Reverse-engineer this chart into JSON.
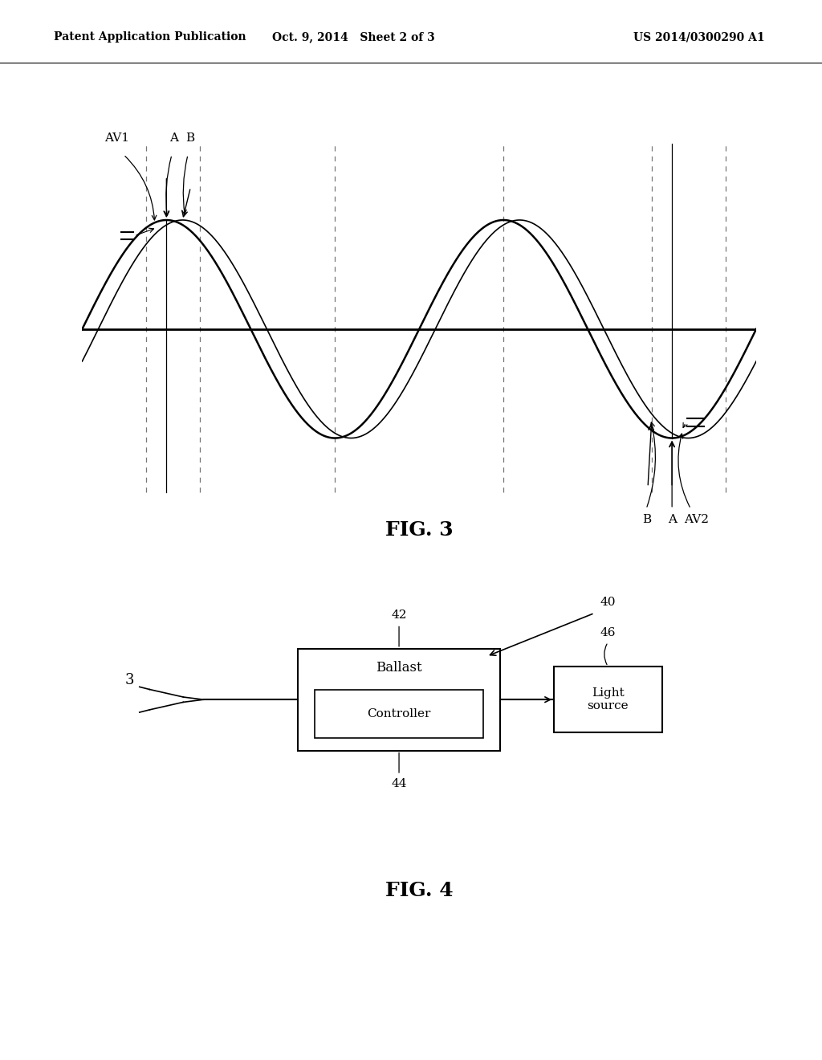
{
  "bg_color": "#ffffff",
  "text_color": "#000000",
  "header_left": "Patent Application Publication",
  "header_mid": "Oct. 9, 2014   Sheet 2 of 3",
  "header_right": "US 2014/0300290 A1",
  "fig3_label": "FIG. 3",
  "fig4_label": "FIG. 4",
  "sine_color": "#000000",
  "axis_color": "#000000",
  "dashed_color": "#777777",
  "label_av1": "AV1",
  "label_a_top": "A",
  "label_b_top": "B",
  "label_b_bot": "B",
  "label_a_bot": "A",
  "label_av2": "AV2",
  "label_42": "42",
  "label_44": "44",
  "label_46": "46",
  "label_40": "40",
  "label_3": "3",
  "ballast_text": "Ballast",
  "controller_text": "Controller",
  "light_source_text": "Light\nsource"
}
